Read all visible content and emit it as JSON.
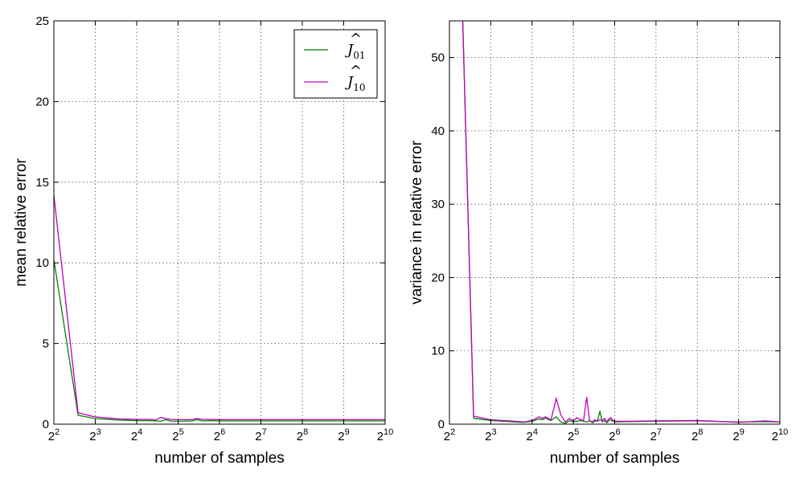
{
  "chart_data": [
    {
      "type": "line",
      "title": "",
      "xlabel": "number of samples",
      "ylabel": "mean relative error",
      "xscale": "log2",
      "xlim": [
        4,
        1024
      ],
      "ylim": [
        0,
        25
      ],
      "xticks": [
        4,
        8,
        16,
        32,
        64,
        128,
        256,
        512,
        1024
      ],
      "xtick_labels": [
        {
          "base": "2",
          "exp": "2"
        },
        {
          "base": "2",
          "exp": "3"
        },
        {
          "base": "2",
          "exp": "4"
        },
        {
          "base": "2",
          "exp": "5"
        },
        {
          "base": "2",
          "exp": "6"
        },
        {
          "base": "2",
          "exp": "7"
        },
        {
          "base": "2",
          "exp": "8"
        },
        {
          "base": "2",
          "exp": "9"
        },
        {
          "base": "2",
          "exp": "10"
        }
      ],
      "yticks": [
        0,
        5,
        10,
        15,
        20,
        25
      ],
      "ytick_labels": [
        "0",
        "5",
        "10",
        "15",
        "20",
        "25"
      ],
      "grid": true,
      "legend_position": "top-right",
      "series": [
        {
          "name": "J01",
          "legend": {
            "base": "J",
            "sub": "01"
          },
          "color": "#008000",
          "x": [
            4,
            6,
            8,
            12,
            16,
            20,
            22,
            24,
            26,
            28,
            32,
            40,
            44,
            48,
            56,
            64,
            80,
            128,
            256,
            512,
            1024
          ],
          "y": [
            10.2,
            0.55,
            0.35,
            0.25,
            0.22,
            0.22,
            0.2,
            0.18,
            0.28,
            0.2,
            0.18,
            0.2,
            0.28,
            0.2,
            0.22,
            0.2,
            0.2,
            0.2,
            0.2,
            0.2,
            0.2
          ]
        },
        {
          "name": "J10",
          "legend": {
            "base": "J",
            "sub": "10"
          },
          "color": "#bf00bf",
          "x": [
            4,
            6,
            8,
            12,
            16,
            20,
            22,
            24,
            26,
            28,
            32,
            40,
            44,
            48,
            56,
            64,
            80,
            128,
            256,
            512,
            1024
          ],
          "y": [
            14.2,
            0.7,
            0.45,
            0.32,
            0.3,
            0.3,
            0.25,
            0.42,
            0.35,
            0.3,
            0.28,
            0.28,
            0.35,
            0.3,
            0.3,
            0.28,
            0.28,
            0.28,
            0.28,
            0.28,
            0.28
          ]
        }
      ]
    },
    {
      "type": "line",
      "title": "",
      "xlabel": "number of samples",
      "ylabel": "variance in relative error",
      "xscale": "log2",
      "xlim": [
        4,
        1024
      ],
      "ylim": [
        0,
        55
      ],
      "xticks": [
        4,
        8,
        16,
        32,
        64,
        128,
        256,
        512,
        1024
      ],
      "xtick_labels": [
        {
          "base": "2",
          "exp": "2"
        },
        {
          "base": "2",
          "exp": "3"
        },
        {
          "base": "2",
          "exp": "4"
        },
        {
          "base": "2",
          "exp": "5"
        },
        {
          "base": "2",
          "exp": "6"
        },
        {
          "base": "2",
          "exp": "7"
        },
        {
          "base": "2",
          "exp": "8"
        },
        {
          "base": "2",
          "exp": "9"
        },
        {
          "base": "2",
          "exp": "10"
        }
      ],
      "yticks": [
        0,
        10,
        20,
        30,
        40,
        50
      ],
      "ytick_labels": [
        "0",
        "10",
        "20",
        "30",
        "40",
        "50"
      ],
      "grid": true,
      "series": [
        {
          "name": "J01",
          "color": "#008000",
          "x": [
            5,
            6,
            8,
            12,
            14,
            16,
            18,
            19,
            20,
            22,
            24,
            26,
            28,
            30,
            32,
            34,
            36,
            38,
            40,
            42,
            44,
            46,
            48,
            50,
            52,
            54,
            56,
            58,
            60,
            62,
            64,
            80,
            128,
            256,
            512,
            800,
            1024
          ],
          "y": [
            55,
            0.8,
            0.5,
            0.3,
            0.25,
            0.4,
            0.7,
            0.6,
            0.8,
            0.5,
            1.0,
            0.3,
            0.1,
            0.5,
            0.3,
            0.4,
            0.5,
            0.4,
            0.3,
            0.5,
            0.2,
            0.4,
            0.5,
            1.8,
            0.3,
            0.5,
            0.2,
            0.5,
            0.6,
            0.4,
            0.3,
            0.35,
            0.4,
            0.45,
            0.3,
            0.35,
            0.3
          ]
        },
        {
          "name": "J10",
          "color": "#bf00bf",
          "x": [
            5,
            6,
            8,
            12,
            14,
            16,
            18,
            19,
            20,
            22,
            24,
            26,
            28,
            30,
            32,
            34,
            36,
            38,
            40,
            42,
            44,
            46,
            48,
            50,
            52,
            54,
            56,
            58,
            60,
            62,
            64,
            80,
            128,
            256,
            512,
            800,
            1024
          ],
          "y": [
            55,
            1.1,
            0.6,
            0.4,
            0.3,
            0.5,
            1.0,
            0.8,
            1.0,
            0.6,
            3.5,
            1.2,
            0.3,
            0.8,
            0.4,
            0.9,
            0.6,
            0.5,
            3.7,
            0.5,
            0.3,
            0.6,
            0.4,
            0.6,
            0.5,
            0.8,
            0.3,
            0.7,
            0.9,
            0.5,
            0.4,
            0.4,
            0.45,
            0.5,
            0.25,
            0.45,
            0.3
          ]
        }
      ]
    }
  ]
}
